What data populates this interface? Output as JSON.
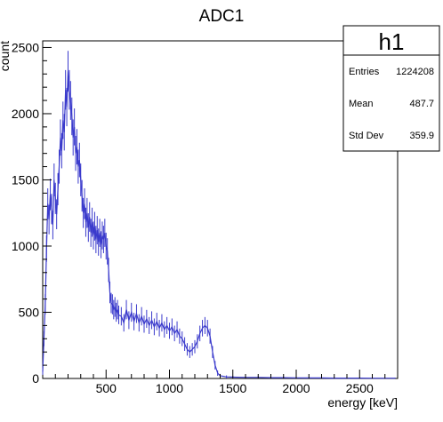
{
  "chart_data": {
    "type": "histogram",
    "title": "ADC1",
    "xlabel": "energy [keV]",
    "ylabel": "count",
    "xlim": [
      0,
      2800
    ],
    "ylim": [
      0,
      2550
    ],
    "x_ticks": [
      500,
      1000,
      1500,
      2000,
      2500
    ],
    "y_ticks": [
      0,
      500,
      1000,
      1500,
      2000,
      2500
    ],
    "series": [
      {
        "color": "#3b3bcc",
        "points": [
          [
            0,
            50
          ],
          [
            10,
            300
          ],
          [
            20,
            560
          ],
          [
            30,
            980
          ],
          [
            40,
            1320
          ],
          [
            50,
            1200
          ],
          [
            60,
            1390
          ],
          [
            70,
            1280
          ],
          [
            80,
            1160
          ],
          [
            90,
            1500
          ],
          [
            100,
            1360
          ],
          [
            110,
            1240
          ],
          [
            120,
            1430
          ],
          [
            130,
            1600
          ],
          [
            140,
            1820
          ],
          [
            150,
            1720
          ],
          [
            160,
            1950
          ],
          [
            170,
            1860
          ],
          [
            180,
            2180
          ],
          [
            190,
            2050
          ],
          [
            200,
            2320
          ],
          [
            210,
            2180
          ],
          [
            220,
            2100
          ],
          [
            230,
            1980
          ],
          [
            240,
            1820
          ],
          [
            250,
            1900
          ],
          [
            260,
            1700
          ],
          [
            270,
            1750
          ],
          [
            280,
            1600
          ],
          [
            290,
            1650
          ],
          [
            300,
            1500
          ],
          [
            310,
            1380
          ],
          [
            320,
            1250
          ],
          [
            330,
            1320
          ],
          [
            340,
            1180
          ],
          [
            350,
            1250
          ],
          [
            360,
            1140
          ],
          [
            370,
            1220
          ],
          [
            380,
            1100
          ],
          [
            390,
            1180
          ],
          [
            400,
            1080
          ],
          [
            410,
            1150
          ],
          [
            420,
            1050
          ],
          [
            430,
            1120
          ],
          [
            440,
            1030
          ],
          [
            450,
            1100
          ],
          [
            460,
            1010
          ],
          [
            470,
            1080
          ],
          [
            480,
            1050
          ],
          [
            490,
            1100
          ],
          [
            500,
            1000
          ],
          [
            510,
            960
          ],
          [
            520,
            820
          ],
          [
            530,
            650
          ],
          [
            540,
            570
          ],
          [
            550,
            560
          ],
          [
            560,
            520
          ],
          [
            570,
            540
          ],
          [
            580,
            500
          ],
          [
            590,
            520
          ],
          [
            600,
            480
          ],
          [
            620,
            470
          ],
          [
            640,
            420
          ],
          [
            660,
            520
          ],
          [
            680,
            440
          ],
          [
            700,
            500
          ],
          [
            720,
            430
          ],
          [
            740,
            490
          ],
          [
            760,
            420
          ],
          [
            780,
            470
          ],
          [
            800,
            410
          ],
          [
            820,
            450
          ],
          [
            840,
            400
          ],
          [
            860,
            440
          ],
          [
            880,
            390
          ],
          [
            900,
            430
          ],
          [
            920,
            380
          ],
          [
            940,
            420
          ],
          [
            960,
            370
          ],
          [
            980,
            400
          ],
          [
            1000,
            360
          ],
          [
            1020,
            390
          ],
          [
            1040,
            340
          ],
          [
            1060,
            370
          ],
          [
            1080,
            320
          ],
          [
            1100,
            300
          ],
          [
            1120,
            260
          ],
          [
            1140,
            220
          ],
          [
            1160,
            200
          ],
          [
            1180,
            220
          ],
          [
            1200,
            240
          ],
          [
            1220,
            280
          ],
          [
            1240,
            340
          ],
          [
            1260,
            380
          ],
          [
            1280,
            400
          ],
          [
            1300,
            380
          ],
          [
            1320,
            320
          ],
          [
            1340,
            200
          ],
          [
            1360,
            100
          ],
          [
            1380,
            40
          ],
          [
            1400,
            20
          ],
          [
            1450,
            12
          ],
          [
            1500,
            10
          ],
          [
            1600,
            8
          ],
          [
            1700,
            8
          ],
          [
            1800,
            6
          ],
          [
            1900,
            6
          ],
          [
            2000,
            5
          ],
          [
            2100,
            4
          ],
          [
            2200,
            4
          ],
          [
            2300,
            3
          ],
          [
            2400,
            3
          ],
          [
            2500,
            3
          ],
          [
            2600,
            2
          ],
          [
            2700,
            2
          ],
          [
            2780,
            2
          ]
        ]
      }
    ],
    "stats_box": {
      "name": "h1",
      "rows": [
        {
          "label": "Entries",
          "value": "1224208"
        },
        {
          "label": "Mean",
          "value": "487.7"
        },
        {
          "label": "Std Dev",
          "value": "359.9"
        }
      ]
    }
  },
  "colors": {
    "series": "#3b3bcc",
    "frame": "#000000",
    "background": "#ffffff"
  }
}
